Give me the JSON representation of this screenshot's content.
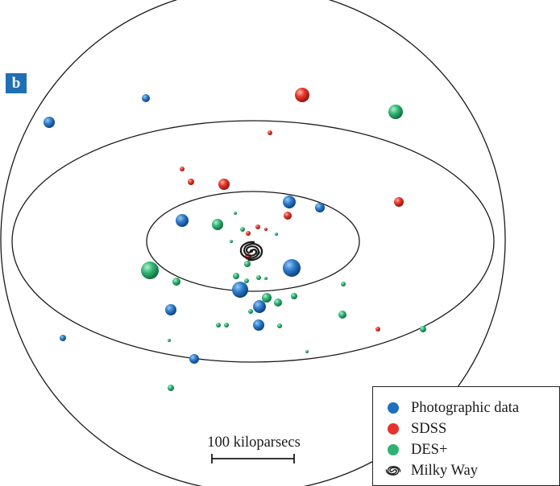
{
  "panel_label": "b",
  "scale_bar": {
    "label": "100 kiloparsecs"
  },
  "legend": {
    "items": [
      {
        "label": "Photographic data",
        "color": "#1f6fbf"
      },
      {
        "label": "SDSS",
        "color": "#e5322b"
      },
      {
        "label": "DES+",
        "color": "#2eb273"
      },
      {
        "label": "Milky Way",
        "icon": "spiral-galaxy-icon"
      }
    ]
  },
  "colors": {
    "photographic": "#1f6fbf",
    "sdss": "#e5322b",
    "des": "#2eb273",
    "outline": "#1a1a1a",
    "panel_label_bg": "#1f6fb4"
  }
}
